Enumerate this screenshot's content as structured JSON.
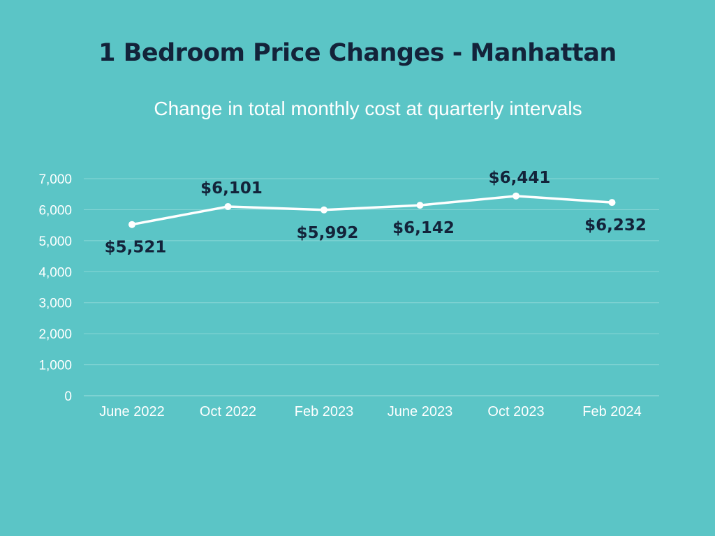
{
  "chart_data": {
    "type": "line",
    "title": "1 Bedroom Price Changes - Manhattan",
    "subtitle": "Change in total monthly cost at quarterly intervals",
    "categories": [
      "June 2022",
      "Oct 2022",
      "Feb 2023",
      "June 2023",
      "Oct 2023",
      "Feb 2024"
    ],
    "values": [
      5521,
      6101,
      5992,
      6142,
      6441,
      6232
    ],
    "data_labels": [
      "$5,521",
      "$6,101",
      "$5,992",
      "$6,142",
      "$6,441",
      "$6,232"
    ],
    "data_label_placement": [
      "below",
      "above",
      "below",
      "below",
      "above",
      "below"
    ],
    "y_ticks": [
      "0",
      "1,000",
      "2,000",
      "3,000",
      "4,000",
      "5,000",
      "6,000",
      "7,000"
    ],
    "y_tick_values": [
      0,
      1000,
      2000,
      3000,
      4000,
      5000,
      6000,
      7000
    ],
    "ylim": [
      0,
      7000
    ],
    "grid": true,
    "legend": "none",
    "colors": {
      "background": "#5bc5c6",
      "title": "#13233a",
      "subtitle": "#ffffff",
      "line": "#ffffff",
      "grid": "#8ad6d6",
      "axis_labels": "#ffffff",
      "data_labels": "#13233a"
    }
  }
}
